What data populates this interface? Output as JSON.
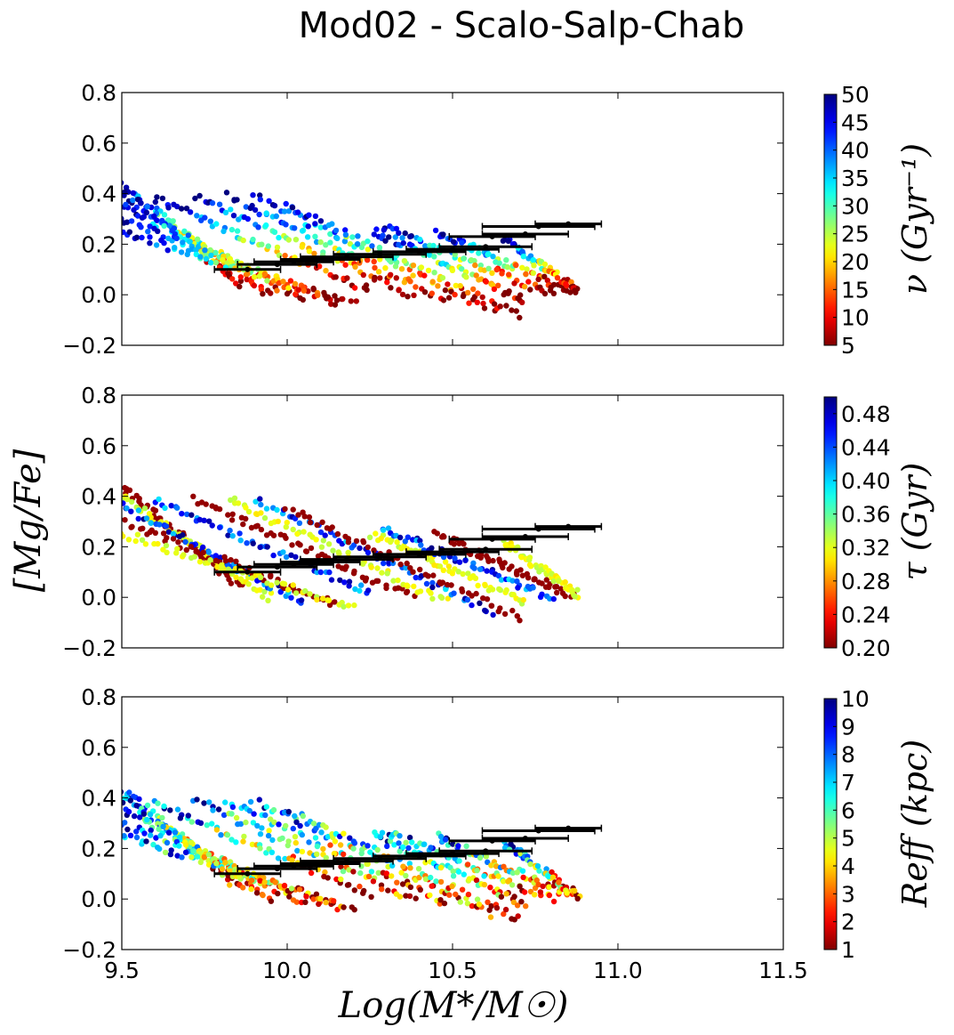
{
  "title": "Mod02 - Scalo-Salp-Chab",
  "xlabel": "Log(M*/M☉)",
  "ylabel": "[Mg/Fe]",
  "chart_data": [
    {
      "type": "scatter",
      "panel": "top",
      "xlim": [
        9.5,
        11.5
      ],
      "ylim": [
        -0.2,
        0.8
      ],
      "xticks": [
        "9.5",
        "10.0",
        "10.5",
        "11.0",
        "11.5"
      ],
      "yticks": [
        "−0.2",
        "0.0",
        "0.2",
        "0.4",
        "0.6",
        "0.8"
      ],
      "colorbar": {
        "label": "ν (Gyr⁻¹)",
        "range": [
          5,
          50
        ],
        "ticks": [
          "5",
          "10",
          "15",
          "20",
          "25",
          "30",
          "35",
          "40",
          "45",
          "50"
        ],
        "colormap": "jet_r"
      }
    },
    {
      "type": "scatter",
      "panel": "middle",
      "xlim": [
        9.5,
        11.5
      ],
      "ylim": [
        -0.2,
        0.8
      ],
      "xticks": [],
      "yticks": [
        "−0.2",
        "0.0",
        "0.2",
        "0.4",
        "0.6",
        "0.8"
      ],
      "colorbar": {
        "label": "τ (Gyr)",
        "range": [
          0.2,
          0.5
        ],
        "ticks": [
          "0.20",
          "0.24",
          "0.28",
          "0.32",
          "0.36",
          "0.40",
          "0.44",
          "0.48"
        ],
        "colormap": "jet_r"
      }
    },
    {
      "type": "scatter",
      "panel": "bottom",
      "xlim": [
        9.5,
        11.5
      ],
      "ylim": [
        -0.2,
        0.8
      ],
      "xticks": [
        "9.5",
        "10.0",
        "10.5",
        "11.0",
        "11.5"
      ],
      "yticks": [
        "−0.2",
        "0.0",
        "0.2",
        "0.4",
        "0.6",
        "0.8"
      ],
      "colorbar": {
        "label": "Reff (kpc)",
        "range": [
          1,
          10
        ],
        "ticks": [
          "1",
          "2",
          "3",
          "4",
          "5",
          "6",
          "7",
          "8",
          "9",
          "10"
        ],
        "colormap": "jet_r"
      }
    }
  ],
  "model_tracks": [
    {
      "x0": 9.5,
      "y0": 0.44,
      "x1": 9.86,
      "y1": 0.04
    },
    {
      "x0": 9.5,
      "y0": 0.4,
      "x1": 9.95,
      "y1": 0.0
    },
    {
      "x0": 9.5,
      "y0": 0.36,
      "x1": 10.05,
      "y1": -0.02
    },
    {
      "x0": 9.5,
      "y0": 0.3,
      "x1": 10.15,
      "y1": -0.03
    },
    {
      "x0": 9.5,
      "y0": 0.25,
      "x1": 10.2,
      "y1": -0.04
    },
    {
      "x0": 9.6,
      "y0": 0.38,
      "x1": 10.25,
      "y1": 0.02
    },
    {
      "x0": 9.72,
      "y0": 0.39,
      "x1": 10.38,
      "y1": 0.0
    },
    {
      "x0": 9.82,
      "y0": 0.39,
      "x1": 10.48,
      "y1": -0.02
    },
    {
      "x0": 9.9,
      "y0": 0.39,
      "x1": 10.62,
      "y1": -0.06
    },
    {
      "x0": 10.0,
      "y0": 0.35,
      "x1": 10.7,
      "y1": -0.08
    },
    {
      "x0": 10.26,
      "y0": 0.25,
      "x1": 10.72,
      "y1": -0.02
    },
    {
      "x0": 10.29,
      "y0": 0.27,
      "x1": 10.8,
      "y1": 0.0
    },
    {
      "x0": 10.45,
      "y0": 0.25,
      "x1": 10.86,
      "y1": 0.01
    },
    {
      "x0": 10.66,
      "y0": 0.22,
      "x1": 10.88,
      "y1": 0.01
    }
  ],
  "observations": [
    {
      "x": 9.88,
      "y": 0.1,
      "xerr": 0.1
    },
    {
      "x": 9.97,
      "y": 0.12,
      "xerr": 0.12
    },
    {
      "x": 10.02,
      "y": 0.13,
      "xerr": 0.12
    },
    {
      "x": 10.1,
      "y": 0.14,
      "xerr": 0.12
    },
    {
      "x": 10.18,
      "y": 0.15,
      "xerr": 0.14
    },
    {
      "x": 10.28,
      "y": 0.16,
      "xerr": 0.14
    },
    {
      "x": 10.4,
      "y": 0.17,
      "xerr": 0.14
    },
    {
      "x": 10.5,
      "y": 0.18,
      "xerr": 0.14
    },
    {
      "x": 10.6,
      "y": 0.19,
      "xerr": 0.14
    },
    {
      "x": 10.62,
      "y": 0.23,
      "xerr": 0.13
    },
    {
      "x": 10.72,
      "y": 0.24,
      "xerr": 0.13
    },
    {
      "x": 10.76,
      "y": 0.27,
      "xerr": 0.17
    },
    {
      "x": 10.85,
      "y": 0.28,
      "xerr": 0.1
    }
  ]
}
